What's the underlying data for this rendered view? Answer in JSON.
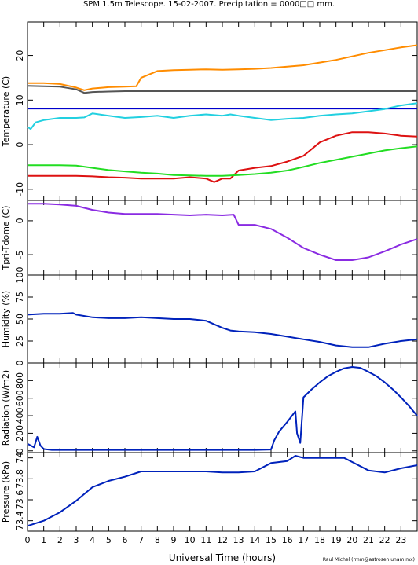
{
  "chart_data": {
    "type": "line",
    "title": "SPM 1.5m Telescope. 15-02-2007. Precipitation = 0000□□ mm.",
    "xlabel": "Universal Time (hours)",
    "credit": "Raul Michel (rmm@astrosen.unam.mx)",
    "xlim": [
      0,
      24
    ],
    "xticks": [
      "0",
      "1",
      "2",
      "3",
      "4",
      "5",
      "6",
      "7",
      "8",
      "9",
      "10",
      "11",
      "12",
      "13",
      "14",
      "15",
      "16",
      "17",
      "18",
      "19",
      "20",
      "21",
      "22",
      "23"
    ],
    "panels": [
      {
        "ylabel": "Temperature (C)",
        "ylim": [
          -12.5,
          27.5
        ],
        "yticks": [
          "-10",
          "0",
          "10",
          "20"
        ],
        "series": [
          {
            "color": "#ff8c00",
            "x": [
              0,
              1,
              2,
              3,
              3.5,
              4,
              5,
              6,
              6.7,
              7,
              8,
              9,
              10,
              11,
              12,
              13,
              14,
              15,
              16,
              17,
              18,
              19,
              20,
              21,
              22,
              23,
              24
            ],
            "y": [
              13.8,
              13.8,
              13.6,
              12.8,
              12.2,
              12.6,
              12.9,
              13.0,
              13.1,
              15.0,
              16.5,
              16.7,
              16.8,
              16.9,
              16.8,
              16.9,
              17.0,
              17.2,
              17.5,
              17.8,
              18.4,
              19.0,
              19.8,
              20.6,
              21.2,
              21.8,
              22.3
            ]
          },
          {
            "color": "#555555",
            "x": [
              0,
              1,
              2,
              3,
              3.5,
              4,
              5,
              6,
              7,
              8,
              9,
              10,
              11,
              12,
              13,
              14,
              15,
              16,
              17,
              18,
              19,
              20,
              21,
              22,
              23,
              24
            ],
            "y": [
              13.2,
              13.1,
              13.0,
              12.4,
              11.6,
              11.8,
              11.9,
              12.0,
              12.0,
              12.0,
              12.0,
              12.0,
              12.0,
              12.0,
              12.0,
              12.0,
              12.0,
              12.0,
              12.0,
              12.0,
              12.0,
              12.0,
              12.0,
              12.0,
              12.0,
              12.0
            ]
          },
          {
            "color": "#0000cc",
            "x": [
              0,
              24
            ],
            "y": [
              8.1,
              8.1
            ]
          },
          {
            "color": "#22d0e0",
            "x": [
              0,
              0.2,
              0.5,
              1,
              2,
              3,
              3.5,
              4,
              5,
              6,
              7,
              8,
              9,
              10,
              11,
              12,
              12.5,
              13,
              14,
              15,
              16,
              17,
              18,
              19,
              20,
              21,
              22,
              23,
              24
            ],
            "y": [
              4.0,
              3.5,
              5.0,
              5.5,
              6.0,
              6.0,
              6.1,
              7.0,
              6.5,
              6.0,
              6.2,
              6.5,
              6.0,
              6.5,
              6.8,
              6.5,
              6.8,
              6.5,
              6.0,
              5.5,
              5.8,
              6.0,
              6.5,
              6.8,
              7.0,
              7.5,
              8.0,
              8.8,
              9.3
            ]
          },
          {
            "color": "#dd1111",
            "x": [
              0,
              1,
              2,
              3,
              4,
              5,
              6,
              7,
              8,
              9,
              10,
              11,
              11.5,
              12,
              12.5,
              13,
              14,
              15,
              16,
              17,
              18,
              19,
              20,
              21,
              22,
              23,
              24
            ],
            "y": [
              -7,
              -7,
              -7,
              -7,
              -7.1,
              -7.3,
              -7.4,
              -7.6,
              -7.6,
              -7.6,
              -7.3,
              -7.6,
              -8.4,
              -7.6,
              -7.6,
              -5.8,
              -5.2,
              -4.8,
              -3.8,
              -2.5,
              0.5,
              2.0,
              2.8,
              2.8,
              2.5,
              2.0,
              1.8
            ]
          },
          {
            "color": "#22dd22",
            "x": [
              0,
              1,
              2,
              3,
              4,
              5,
              6,
              7,
              8,
              9,
              10,
              11,
              12,
              13,
              14,
              15,
              16,
              17,
              18,
              19,
              20,
              21,
              22,
              23,
              24
            ],
            "y": [
              -4.6,
              -4.6,
              -4.6,
              -4.7,
              -5.2,
              -5.7,
              -6.0,
              -6.3,
              -6.5,
              -6.8,
              -6.9,
              -7.0,
              -7.0,
              -6.8,
              -6.6,
              -6.3,
              -5.8,
              -5.0,
              -4.1,
              -3.4,
              -2.7,
              -2.0,
              -1.3,
              -0.8,
              -0.4
            ]
          }
        ]
      },
      {
        "ylabel": "Tpri-Tdome (C)",
        "ylim": [
          -8,
          3
        ],
        "yticks": [
          "-5",
          "0"
        ],
        "series": [
          {
            "color": "#8a2be2",
            "x": [
              0,
              1,
              2,
              3,
              3.5,
              4,
              5,
              6,
              7,
              8,
              9,
              10,
              11,
              12,
              12.7,
              13,
              14,
              15,
              16,
              17,
              18,
              19,
              20,
              21,
              22,
              23,
              24
            ],
            "y": [
              2.5,
              2.5,
              2.4,
              2.2,
              1.9,
              1.6,
              1.2,
              1.0,
              1.0,
              1.0,
              0.9,
              0.8,
              0.9,
              0.8,
              0.9,
              -0.6,
              -0.6,
              -1.2,
              -2.5,
              -4.0,
              -5.0,
              -5.8,
              -5.8,
              -5.4,
              -4.5,
              -3.5,
              -2.7
            ]
          }
        ]
      },
      {
        "ylabel": "Humidity (%)",
        "ylim": [
          0,
          100
        ],
        "yticks": [
          "0",
          "25",
          "50",
          "75",
          "100"
        ],
        "series": [
          {
            "color": "#0022bb",
            "x": [
              0,
              1,
              2,
              2.8,
              3,
              4,
              5,
              6,
              7,
              8,
              9,
              10,
              11,
              12,
              12.5,
              13,
              14,
              15,
              16,
              17,
              18,
              19,
              20,
              21,
              22,
              23,
              24
            ],
            "y": [
              55,
              56,
              56,
              57,
              55,
              52,
              51,
              51,
              52,
              51,
              50,
              50,
              48,
              40,
              37,
              36,
              35,
              33,
              30,
              27,
              24,
              20,
              18,
              18,
              22,
              25,
              27
            ]
          }
        ]
      },
      {
        "ylabel": "Radiation (W/m2)",
        "ylim": [
          -20,
          1000
        ],
        "yticks": [
          "0",
          "200",
          "400",
          "600",
          "800"
        ],
        "series": [
          {
            "color": "#0022bb",
            "x": [
              0,
              0.4,
              0.6,
              0.8,
              1.0,
              1.5,
              2,
              3,
              4,
              5,
              6,
              7,
              8,
              9,
              10,
              11,
              12,
              13,
              14,
              15,
              15.2,
              15.5,
              16,
              16.5,
              16.6,
              16.8,
              17,
              17.5,
              18,
              18.5,
              19,
              19.5,
              20,
              20.5,
              21,
              21.5,
              22,
              22.5,
              23,
              23.5,
              24
            ],
            "y": [
              80,
              40,
              160,
              60,
              20,
              10,
              10,
              10,
              10,
              10,
              10,
              10,
              10,
              10,
              10,
              10,
              10,
              10,
              10,
              15,
              120,
              220,
              330,
              450,
              200,
              90,
              610,
              700,
              780,
              850,
              900,
              940,
              955,
              945,
              900,
              850,
              780,
              700,
              610,
              510,
              400
            ]
          }
        ]
      },
      {
        "ylabel": "Pressure (kPa)",
        "ylim": [
          73.3,
          74.05
        ],
        "yticks": [
          "73.4",
          "73.6",
          "73.8",
          "74"
        ],
        "series": [
          {
            "color": "#0022bb",
            "x": [
              0,
              1,
              2,
              3,
              4,
              5,
              6,
              7,
              8,
              9,
              10,
              11,
              12,
              13,
              14,
              15,
              16,
              16.5,
              17,
              18,
              19,
              19.5,
              20,
              21,
              22,
              23,
              24
            ],
            "y": [
              73.35,
              73.4,
              73.48,
              73.59,
              73.72,
              73.78,
              73.82,
              73.87,
              73.87,
              73.87,
              73.87,
              73.87,
              73.86,
              73.86,
              73.87,
              73.95,
              73.97,
              74.02,
              74.0,
              74.0,
              74.0,
              74.0,
              73.96,
              73.88,
              73.86,
              73.9,
              73.93
            ]
          }
        ]
      }
    ]
  }
}
